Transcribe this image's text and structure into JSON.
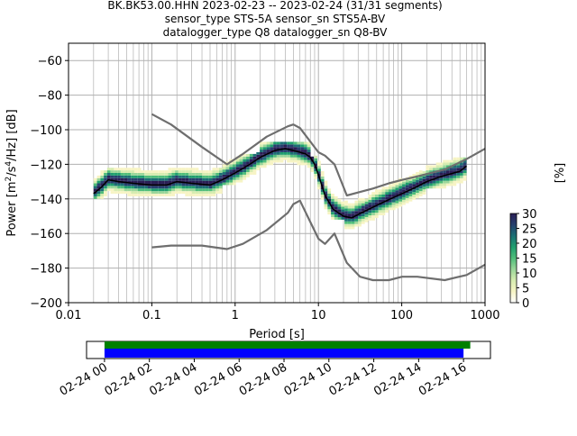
{
  "header": {
    "title_line1": "BK.BK53.00.HHN   2023-02-23 -- 2023-02-24  (31/31 segments)",
    "title_line2": "sensor_type STS-5A sensor_sn STS5A-BV",
    "title_line3": "datalogger_type Q8 datalogger_sn Q8-BV"
  },
  "colors": {
    "noise_model": "#6e6e6e",
    "mode_line": "#000000",
    "grid": "#b0b0b0",
    "coverage_top": "#008000",
    "coverage_bottom": "#0000ff"
  },
  "chart_data": {
    "type": "heatmap",
    "subtype": "probabilistic_power_spectral_density",
    "xlabel": "Period [s]",
    "ylabel": "Power [m$^2$/s$^4$/Hz] [dB]",
    "x_scale": "log",
    "xlim": [
      0.01,
      1000
    ],
    "ylim": [
      -200,
      -50
    ],
    "x_ticks": [
      {
        "value": 0.01,
        "label": "0.01"
      },
      {
        "value": 0.1,
        "label": "0.1"
      },
      {
        "value": 1,
        "label": "1"
      },
      {
        "value": 10,
        "label": "10"
      },
      {
        "value": 100,
        "label": "100"
      },
      {
        "value": 1000,
        "label": "1000"
      }
    ],
    "y_ticks": [
      {
        "value": -60,
        "label": "−60"
      },
      {
        "value": -80,
        "label": "−80"
      },
      {
        "value": -100,
        "label": "−100"
      },
      {
        "value": -120,
        "label": "−120"
      },
      {
        "value": -140,
        "label": "−140"
      },
      {
        "value": -160,
        "label": "−160"
      },
      {
        "value": -180,
        "label": "−180"
      },
      {
        "value": -200,
        "label": "−200"
      }
    ],
    "grid": true,
    "mode_curve": {
      "period": [
        0.02,
        0.025,
        0.03,
        0.04,
        0.06,
        0.1,
        0.15,
        0.2,
        0.3,
        0.5,
        0.7,
        1,
        1.5,
        2,
        3,
        4,
        5,
        6,
        7,
        8,
        9,
        10,
        12,
        15,
        20,
        25,
        30,
        40,
        60,
        100,
        150,
        200,
        300,
        500,
        600
      ],
      "power": [
        -137,
        -133,
        -129,
        -130,
        -131,
        -132,
        -132,
        -130,
        -131,
        -132,
        -129,
        -125,
        -120,
        -116,
        -112,
        -111,
        -112,
        -113,
        -114,
        -116,
        -120,
        -126,
        -138,
        -146,
        -150,
        -151,
        -149,
        -146,
        -142,
        -137,
        -133,
        -130,
        -127,
        -124,
        -121
      ]
    },
    "spread_bands": [
      {
        "period_range": [
          0.02,
          0.03
        ],
        "power_range": [
          -140,
          -124
        ]
      },
      {
        "period_range": [
          0.03,
          0.7
        ],
        "power_range": [
          -140,
          -122
        ]
      },
      {
        "period_range": [
          0.7,
          2
        ],
        "power_range": [
          -132,
          -114
        ]
      },
      {
        "period_range": [
          2,
          8
        ],
        "power_range": [
          -122,
          -108
        ]
      },
      {
        "period_range": [
          8,
          20
        ],
        "power_range": [
          -152,
          -116
        ]
      },
      {
        "period_range": [
          20,
          40
        ],
        "power_range": [
          -162,
          -140
        ]
      },
      {
        "period_range": [
          40,
          200
        ],
        "power_range": [
          -154,
          -124
        ]
      },
      {
        "period_range": [
          200,
          600
        ],
        "power_range": [
          -134,
          -116
        ]
      }
    ],
    "noise_models": [
      {
        "period": [
          0.1,
          0.17,
          0.4,
          0.8,
          1.24,
          2.4,
          4.3,
          5,
          6,
          10,
          12,
          15.6,
          21.9,
          31.6,
          45,
          70,
          101,
          154,
          328,
          600,
          1000
        ],
        "power": [
          -91,
          -97,
          -110,
          -120,
          -114,
          -104,
          -98,
          -97,
          -99,
          -113,
          -115,
          -120,
          -138,
          -136,
          -134,
          -131,
          -129,
          -127,
          -123,
          -117,
          -111
        ]
      },
      {
        "period": [
          0.1,
          0.17,
          0.4,
          0.8,
          1.24,
          2.4,
          4.3,
          5,
          6,
          10,
          12,
          15.6,
          21.9,
          31.6,
          45,
          70,
          101,
          154,
          328,
          600,
          1000
        ],
        "power": [
          -168,
          -167,
          -167,
          -169,
          -166,
          -158,
          -148,
          -143,
          -141,
          -163,
          -166,
          -160,
          -177,
          -185,
          -187,
          -187,
          -185,
          -185,
          -187,
          -184,
          -178
        ]
      }
    ],
    "colorbar": {
      "label": "[%]",
      "range": [
        0,
        30
      ],
      "ticks": [
        "0",
        "5",
        "10",
        "15",
        "20",
        "25",
        "30"
      ],
      "colormap": "pqlx",
      "stops": [
        "#ffffff",
        "#f7f4c4",
        "#d6ecb0",
        "#9ad69a",
        "#4fbd7a",
        "#1f9e6e",
        "#1b6f74",
        "#26406e",
        "#2a1e55"
      ]
    },
    "timeline": {
      "tick_labels": [
        "02-24 00",
        "02-24 02",
        "02-24 04",
        "02-24 06",
        "02-24 08",
        "02-24 10",
        "02-24 12",
        "02-24 14",
        "02-24 16"
      ],
      "range_hours": [
        -0.8,
        17.2
      ],
      "data_coverage_hours": [
        0,
        16.3
      ],
      "used_coverage_hours": [
        0,
        16
      ]
    }
  }
}
